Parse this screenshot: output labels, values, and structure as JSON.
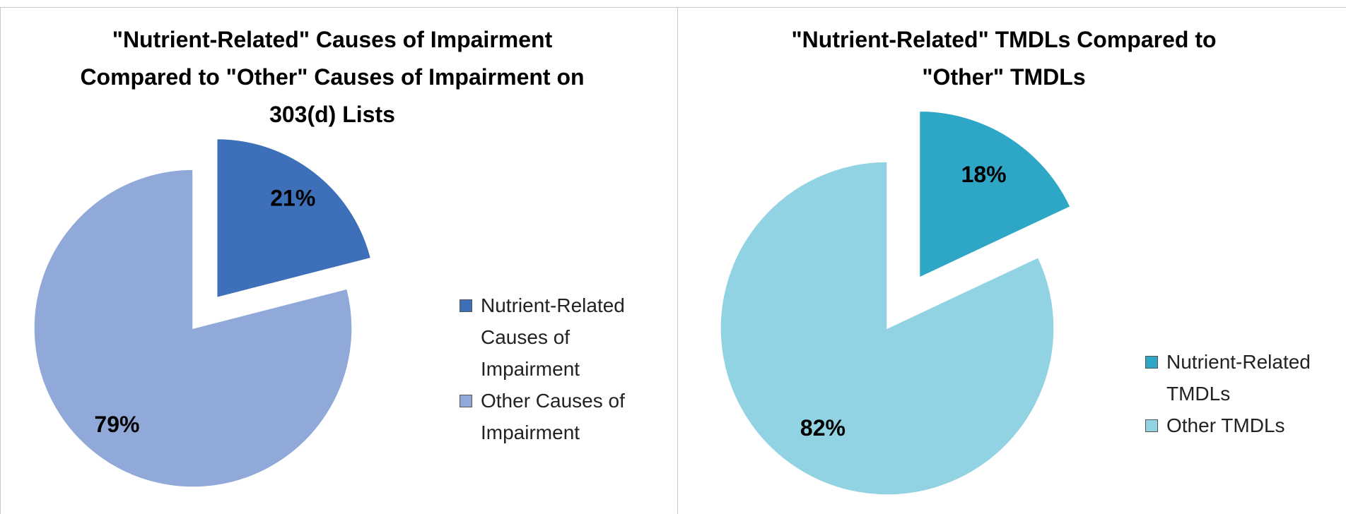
{
  "chart_data": [
    {
      "type": "pie",
      "title": "\"Nutrient-Related\" Causes of Impairment Compared to \"Other\" Causes of Impairment on 303(d) Lists",
      "categories": [
        "Nutrient-Related Causes of Impairment",
        "Other Causes of Impairment"
      ],
      "values": [
        21,
        79
      ],
      "value_labels": [
        "21%",
        "79%"
      ],
      "colors": [
        "#3d70b8",
        "#91a9d9"
      ]
    },
    {
      "type": "pie",
      "title": "\"Nutrient-Related\" TMDLs Compared to \"Other\" TMDLs",
      "categories": [
        "Nutrient-Related TMDLs",
        "Other TMDLs"
      ],
      "values": [
        18,
        82
      ],
      "value_labels": [
        "18%",
        "82%"
      ],
      "colors": [
        "#2ea7c6",
        "#91d2e3"
      ]
    }
  ]
}
